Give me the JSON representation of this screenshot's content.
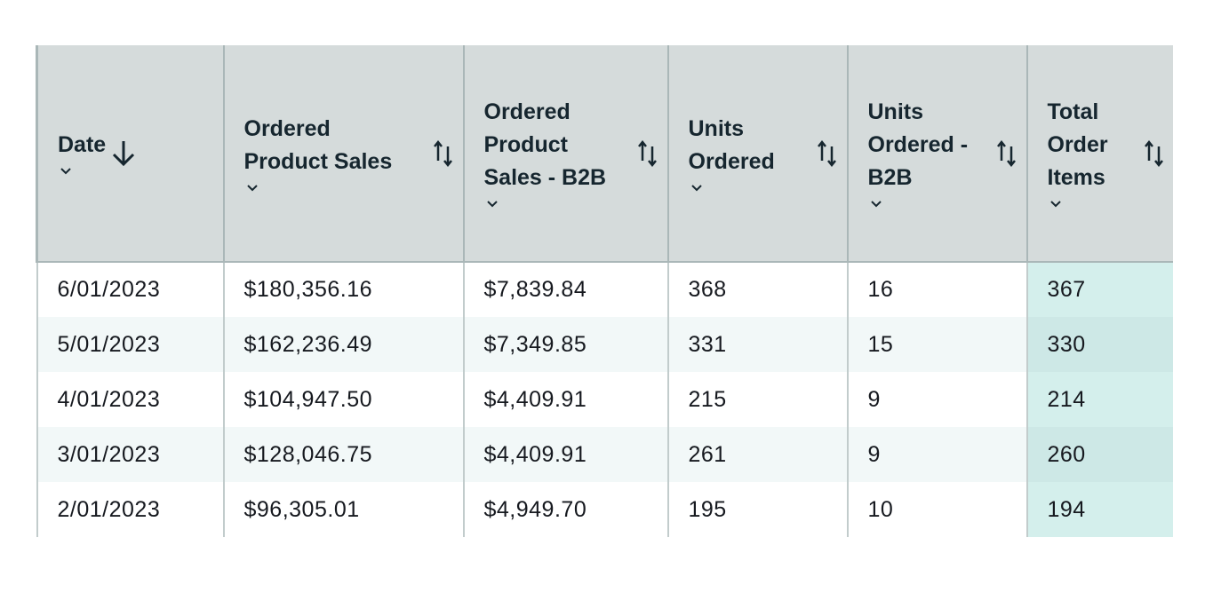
{
  "table": {
    "columns": [
      {
        "label": "Date",
        "sort": "descending"
      },
      {
        "label": "Ordered\nProduct Sales",
        "sort": "none"
      },
      {
        "label": "Ordered\nProduct\nSales - B2B",
        "sort": "none"
      },
      {
        "label": "Units\nOrdered",
        "sort": "none"
      },
      {
        "label": "Units\nOrdered -\nB2B",
        "sort": "none"
      },
      {
        "label": "Total\nOrder\nItems",
        "sort": "none"
      }
    ],
    "rows": [
      [
        "6/01/2023",
        "$180,356.16",
        "$7,839.84",
        "368",
        "16",
        "367"
      ],
      [
        "5/01/2023",
        "$162,236.49",
        "$7,349.85",
        "331",
        "15",
        "330"
      ],
      [
        "4/01/2023",
        "$104,947.50",
        "$4,409.91",
        "215",
        "9",
        "214"
      ],
      [
        "3/01/2023",
        "$128,046.75",
        "$4,409.91",
        "261",
        "9",
        "260"
      ],
      [
        "2/01/2023",
        "$96,305.01",
        "$4,949.70",
        "195",
        "10",
        "194"
      ]
    ],
    "highlight_color": "#d4efec",
    "header_color": "#d5dbdb",
    "icons": {
      "sort_descending": "arrow-down-icon",
      "sort_unsorted": "sort-arrows-icon",
      "column_menu": "chevron-down-icon"
    }
  }
}
